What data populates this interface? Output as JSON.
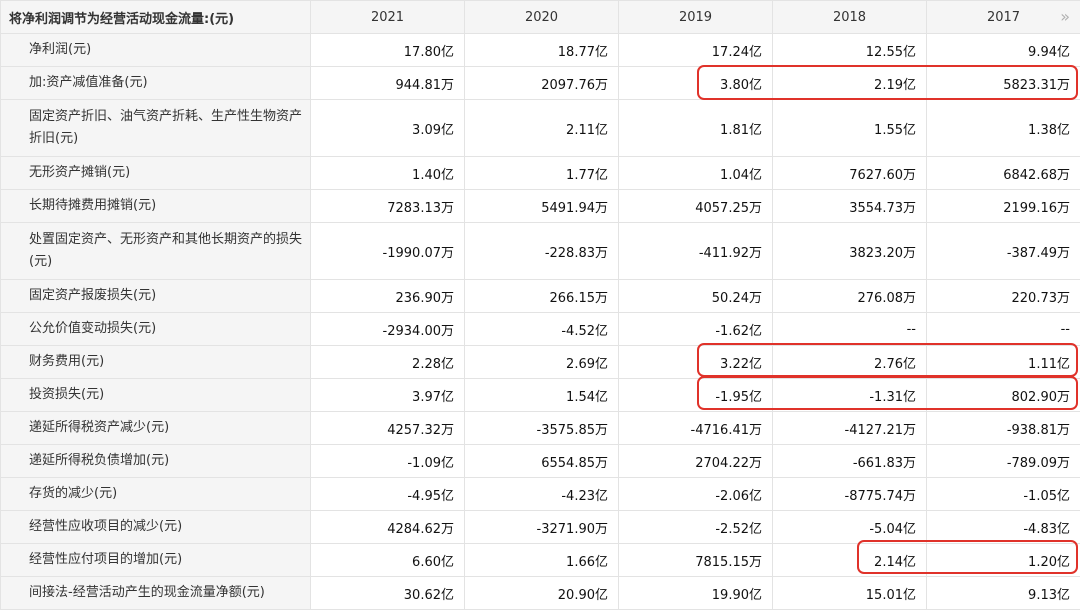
{
  "header": {
    "label": "将净利润调节为经营活动现金流量:(元)",
    "years": [
      "2021",
      "2020",
      "2019",
      "2018",
      "2017"
    ],
    "more_icon": "double-chevron-right-icon"
  },
  "rows": [
    {
      "label": "净利润(元)",
      "values": [
        "17.80亿",
        "18.77亿",
        "17.24亿",
        "12.55亿",
        "9.94亿"
      ]
    },
    {
      "label": "加:资产减值准备(元)",
      "values": [
        "944.81万",
        "2097.76万",
        "3.80亿",
        "2.19亿",
        "5823.31万"
      ]
    },
    {
      "label": "固定资产折旧、油气资产折耗、生产性生物资产折旧(元)",
      "values": [
        "3.09亿",
        "2.11亿",
        "1.81亿",
        "1.55亿",
        "1.38亿"
      ]
    },
    {
      "label": "无形资产摊销(元)",
      "values": [
        "1.40亿",
        "1.77亿",
        "1.04亿",
        "7627.60万",
        "6842.68万"
      ]
    },
    {
      "label": "长期待摊费用摊销(元)",
      "values": [
        "7283.13万",
        "5491.94万",
        "4057.25万",
        "3554.73万",
        "2199.16万"
      ]
    },
    {
      "label": "处置固定资产、无形资产和其他长期资产的损失(元)",
      "values": [
        "-1990.07万",
        "-228.83万",
        "-411.92万",
        "3823.20万",
        "-387.49万"
      ]
    },
    {
      "label": "固定资产报废损失(元)",
      "values": [
        "236.90万",
        "266.15万",
        "50.24万",
        "276.08万",
        "220.73万"
      ]
    },
    {
      "label": "公允价值变动损失(元)",
      "values": [
        "-2934.00万",
        "-4.52亿",
        "-1.62亿",
        "--",
        "--"
      ]
    },
    {
      "label": "财务费用(元)",
      "values": [
        "2.28亿",
        "2.69亿",
        "3.22亿",
        "2.76亿",
        "1.11亿"
      ]
    },
    {
      "label": "投资损失(元)",
      "values": [
        "3.97亿",
        "1.54亿",
        "-1.95亿",
        "-1.31亿",
        "802.90万"
      ]
    },
    {
      "label": "递延所得税资产减少(元)",
      "values": [
        "4257.32万",
        "-3575.85万",
        "-4716.41万",
        "-4127.21万",
        "-938.81万"
      ]
    },
    {
      "label": "递延所得税负债增加(元)",
      "values": [
        "-1.09亿",
        "6554.85万",
        "2704.22万",
        "-661.83万",
        "-789.09万"
      ]
    },
    {
      "label": "存货的减少(元)",
      "values": [
        "-4.95亿",
        "-4.23亿",
        "-2.06亿",
        "-8775.74万",
        "-1.05亿"
      ]
    },
    {
      "label": "经营性应收项目的减少(元)",
      "values": [
        "4284.62万",
        "-3271.90万",
        "-2.52亿",
        "-5.04亿",
        "-4.83亿"
      ]
    },
    {
      "label": "经营性应付项目的增加(元)",
      "values": [
        "6.60亿",
        "1.66亿",
        "7815.15万",
        "2.14亿",
        "1.20亿"
      ]
    },
    {
      "label": "间接法-经营活动产生的现金流量净额(元)",
      "values": [
        "30.62亿",
        "20.90亿",
        "19.90亿",
        "15.01亿",
        "9.13亿"
      ]
    }
  ],
  "highlight_color": "#e0322a"
}
